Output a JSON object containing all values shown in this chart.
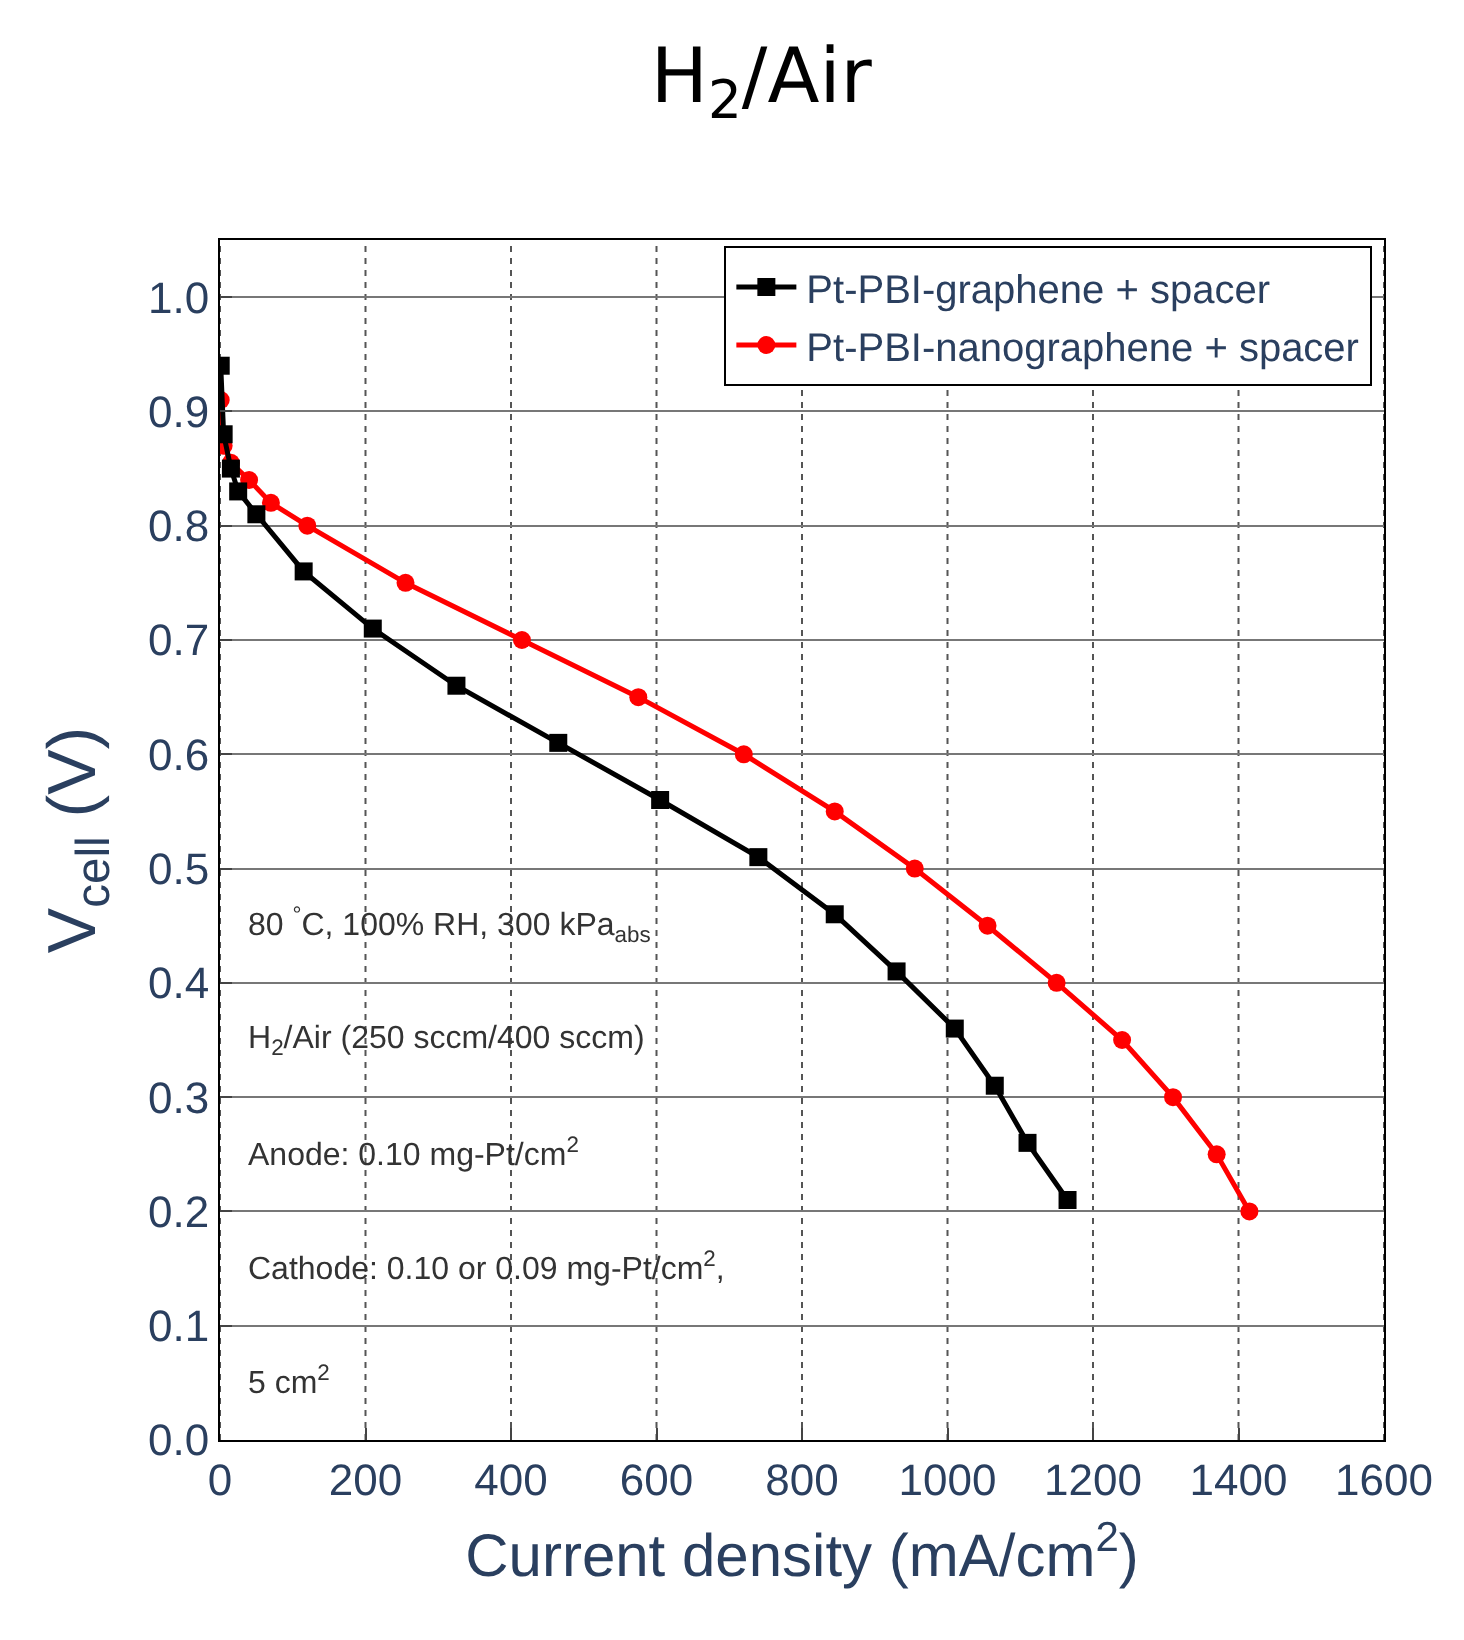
{
  "chart_data": {
    "type": "line",
    "title": "H$_{2}$/Air",
    "xlabel": "Current density (mA/cm$^{2}$)",
    "ylabel": "V$_{cell}$ (V)",
    "xlim": [
      0,
      1600
    ],
    "xticks": [
      0,
      200,
      400,
      600,
      800,
      1000,
      1200,
      1400,
      1600
    ],
    "ylim": [
      0,
      1.05
    ],
    "yticks": [
      {
        "value": 0,
        "label": "0.0"
      },
      0.1,
      0.2,
      0.3,
      0.4,
      0.5,
      0.6,
      0.7,
      0.8,
      0.9,
      {
        "value": 1,
        "label": "1.0"
      }
    ],
    "grid": true,
    "legend": "top right",
    "series": [
      {
        "name": "Pt-PBI-graphene + spacer",
        "color": "#000000",
        "marker": "square",
        "x": [
          1,
          5,
          15,
          25,
          50,
          115,
          210,
          325,
          465,
          605,
          740,
          845,
          930,
          1010,
          1065,
          1110,
          1165
        ],
        "values": [
          0.94,
          0.88,
          0.85,
          0.83,
          0.81,
          0.76,
          0.71,
          0.66,
          0.61,
          0.56,
          0.51,
          0.46,
          0.41,
          0.36,
          0.31,
          0.26,
          0.21
        ]
      },
      {
        "name": "Pt-PBI-nanographene + spacer",
        "color": "#ff0000",
        "marker": "circle",
        "x": [
          1,
          5,
          15,
          40,
          70,
          120,
          255,
          415,
          575,
          720,
          845,
          955,
          1055,
          1150,
          1240,
          1310,
          1370,
          1415
        ],
        "values": [
          0.91,
          0.87,
          0.855,
          0.84,
          0.82,
          0.8,
          0.75,
          0.7,
          0.65,
          0.6,
          0.55,
          0.5,
          0.45,
          0.4,
          0.35,
          0.3,
          0.25,
          0.2
        ]
      }
    ],
    "annotations": [
      "80 $^{°}$C, 100% RH, 300 kPa$_{abs}$",
      "H$_{2}$/Air (250 sccm/400 sccm)",
      "Anode: 0.10 mg-Pt/cm$^{2}$",
      "Cathode: 0.10 or 0.09 mg-Pt/cm$^{2}$,",
      "5 cm$^{2}$"
    ]
  }
}
